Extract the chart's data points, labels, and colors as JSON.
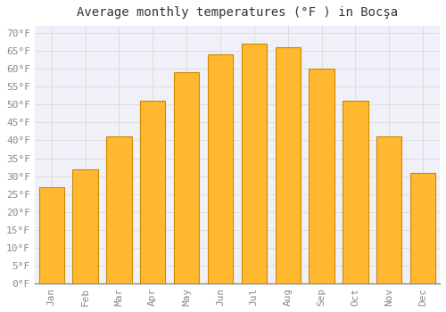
{
  "title": "Average monthly temperatures (°F ) in Bocşa",
  "months": [
    "Jan",
    "Feb",
    "Mar",
    "Apr",
    "May",
    "Jun",
    "Jul",
    "Aug",
    "Sep",
    "Oct",
    "Nov",
    "Dec"
  ],
  "values": [
    27,
    32,
    41,
    51,
    59,
    64,
    67,
    66,
    60,
    51,
    41,
    31
  ],
  "bar_color": "#FFA500",
  "bar_face_color": "#FFB830",
  "bar_edge_color": "#CC8800",
  "background_color": "#FFFFFF",
  "plot_bg_color": "#F0F0F8",
  "grid_color": "#DDDDDD",
  "ylim": [
    0,
    72
  ],
  "yticks": [
    0,
    5,
    10,
    15,
    20,
    25,
    30,
    35,
    40,
    45,
    50,
    55,
    60,
    65,
    70
  ],
  "title_fontsize": 10,
  "tick_fontsize": 8,
  "font_family": "monospace",
  "tick_color": "#888888"
}
